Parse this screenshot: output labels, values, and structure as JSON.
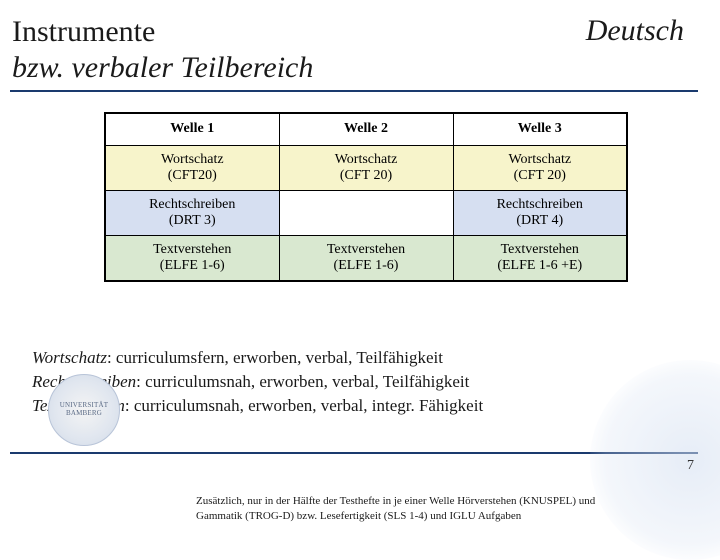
{
  "header": {
    "title_line1": "Instrumente",
    "title_line2": "bzw. verbaler Teilbereich",
    "right_label": "Deutsch",
    "rule_color": "#1a3a6e"
  },
  "table": {
    "columns": [
      "Welle 1",
      "Welle 2",
      "Welle 3"
    ],
    "rows": [
      {
        "bg": "#f7f4cb",
        "cells": [
          "Wortschatz\n(CFT20)",
          "Wortschatz\n(CFT 20)",
          "Wortschatz\n(CFT 20)"
        ]
      },
      {
        "bg": "#d6dff1",
        "cells": [
          "Rechtschreiben\n(DRT 3)",
          "",
          "Rechtschreiben\n(DRT 4)"
        ]
      },
      {
        "bg": "#d9e8d0",
        "cells": [
          "Textverstehen\n(ELFE 1-6)",
          "Textverstehen\n(ELFE 1-6)",
          "Textverstehen\n(ELFE 1-6 +E)"
        ]
      }
    ],
    "border_color": "#000000",
    "header_fontweight": "bold"
  },
  "definitions": [
    {
      "term": "Wortschatz",
      "desc": ":  curriculumsfern, erworben, verbal, Teilfähigkeit"
    },
    {
      "term": "Rechtschreiben",
      "desc": ": curriculumsnah, erworben, verbal, Teilfähigkeit"
    },
    {
      "term": "Textverstehen",
      "desc": ": curriculumsnah, erworben, verbal, integr. Fähigkeit"
    }
  ],
  "footer": {
    "logo_text": "UNIVERSITÄT BAMBERG",
    "page_number": "7",
    "footnote": "Zusätzlich, nur in der Hälfte der Testhefte in je einer Welle Hörverstehen (KNUSPEL) und Gammatik (TROG-D) bzw. Lesefertigkeit (SLS 1-4) und IGLU Aufgaben"
  },
  "colors": {
    "yellow": "#f7f4cb",
    "blue": "#d6dff1",
    "green": "#d9e8d0",
    "accent": "#1a3a6e"
  }
}
